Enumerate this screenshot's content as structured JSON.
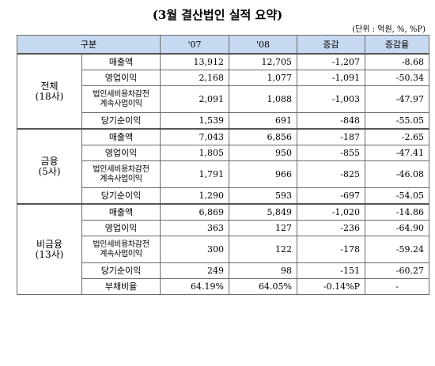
{
  "title": "(3월 결산법인 실적 요약)",
  "unit_note": "(단위 : 억원, %, %P)",
  "headers": {
    "category": "구분",
    "y07": "'07",
    "y08": "'08",
    "change": "증감",
    "change_rate": "증감율"
  },
  "groups": [
    {
      "name": "전체",
      "count": "(18사)",
      "rows": [
        {
          "metric": "매출액",
          "y07": "13,912",
          "y08": "12,705",
          "change": "-1,207",
          "rate": "-8.68"
        },
        {
          "metric": "영업이익",
          "y07": "2,168",
          "y08": "1,077",
          "change": "-1,091",
          "rate": "-50.34"
        },
        {
          "metric_line1": "법인세비용차감전",
          "metric_line2": "계속사업이익",
          "y07": "2,091",
          "y08": "1,088",
          "change": "-1,003",
          "rate": "-47.97"
        },
        {
          "metric": "당기순이익",
          "y07": "1,539",
          "y08": "691",
          "change": "-848",
          "rate": "-55.05"
        }
      ]
    },
    {
      "name": "금융",
      "count": "(5사)",
      "rows": [
        {
          "metric": "매출액",
          "y07": "7,043",
          "y08": "6,856",
          "change": "-187",
          "rate": "-2.65"
        },
        {
          "metric": "영업이익",
          "y07": "1,805",
          "y08": "950",
          "change": "-855",
          "rate": "-47.41"
        },
        {
          "metric_line1": "법인세비용차감전",
          "metric_line2": "계속사업이익",
          "y07": "1,791",
          "y08": "966",
          "change": "-825",
          "rate": "-46.08"
        },
        {
          "metric": "당기순이익",
          "y07": "1,290",
          "y08": "593",
          "change": "-697",
          "rate": "-54.05"
        }
      ]
    },
    {
      "name": "비금융",
      "count": "(13사)",
      "rows": [
        {
          "metric": "매출액",
          "y07": "6,869",
          "y08": "5,849",
          "change": "-1,020",
          "rate": "-14.86"
        },
        {
          "metric": "영업이익",
          "y07": "363",
          "y08": "127",
          "change": "-236",
          "rate": "-64.90"
        },
        {
          "metric_line1": "법인세비용차감전",
          "metric_line2": "계속사업이익",
          "y07": "300",
          "y08": "122",
          "change": "-178",
          "rate": "-59.24"
        },
        {
          "metric": "당기순이익",
          "y07": "249",
          "y08": "98",
          "change": "-151",
          "rate": "-60.27"
        },
        {
          "metric": "부채비율",
          "y07": "64.19%",
          "y08": "64.05%",
          "change": "-0.14%P",
          "rate": "-"
        }
      ]
    }
  ]
}
